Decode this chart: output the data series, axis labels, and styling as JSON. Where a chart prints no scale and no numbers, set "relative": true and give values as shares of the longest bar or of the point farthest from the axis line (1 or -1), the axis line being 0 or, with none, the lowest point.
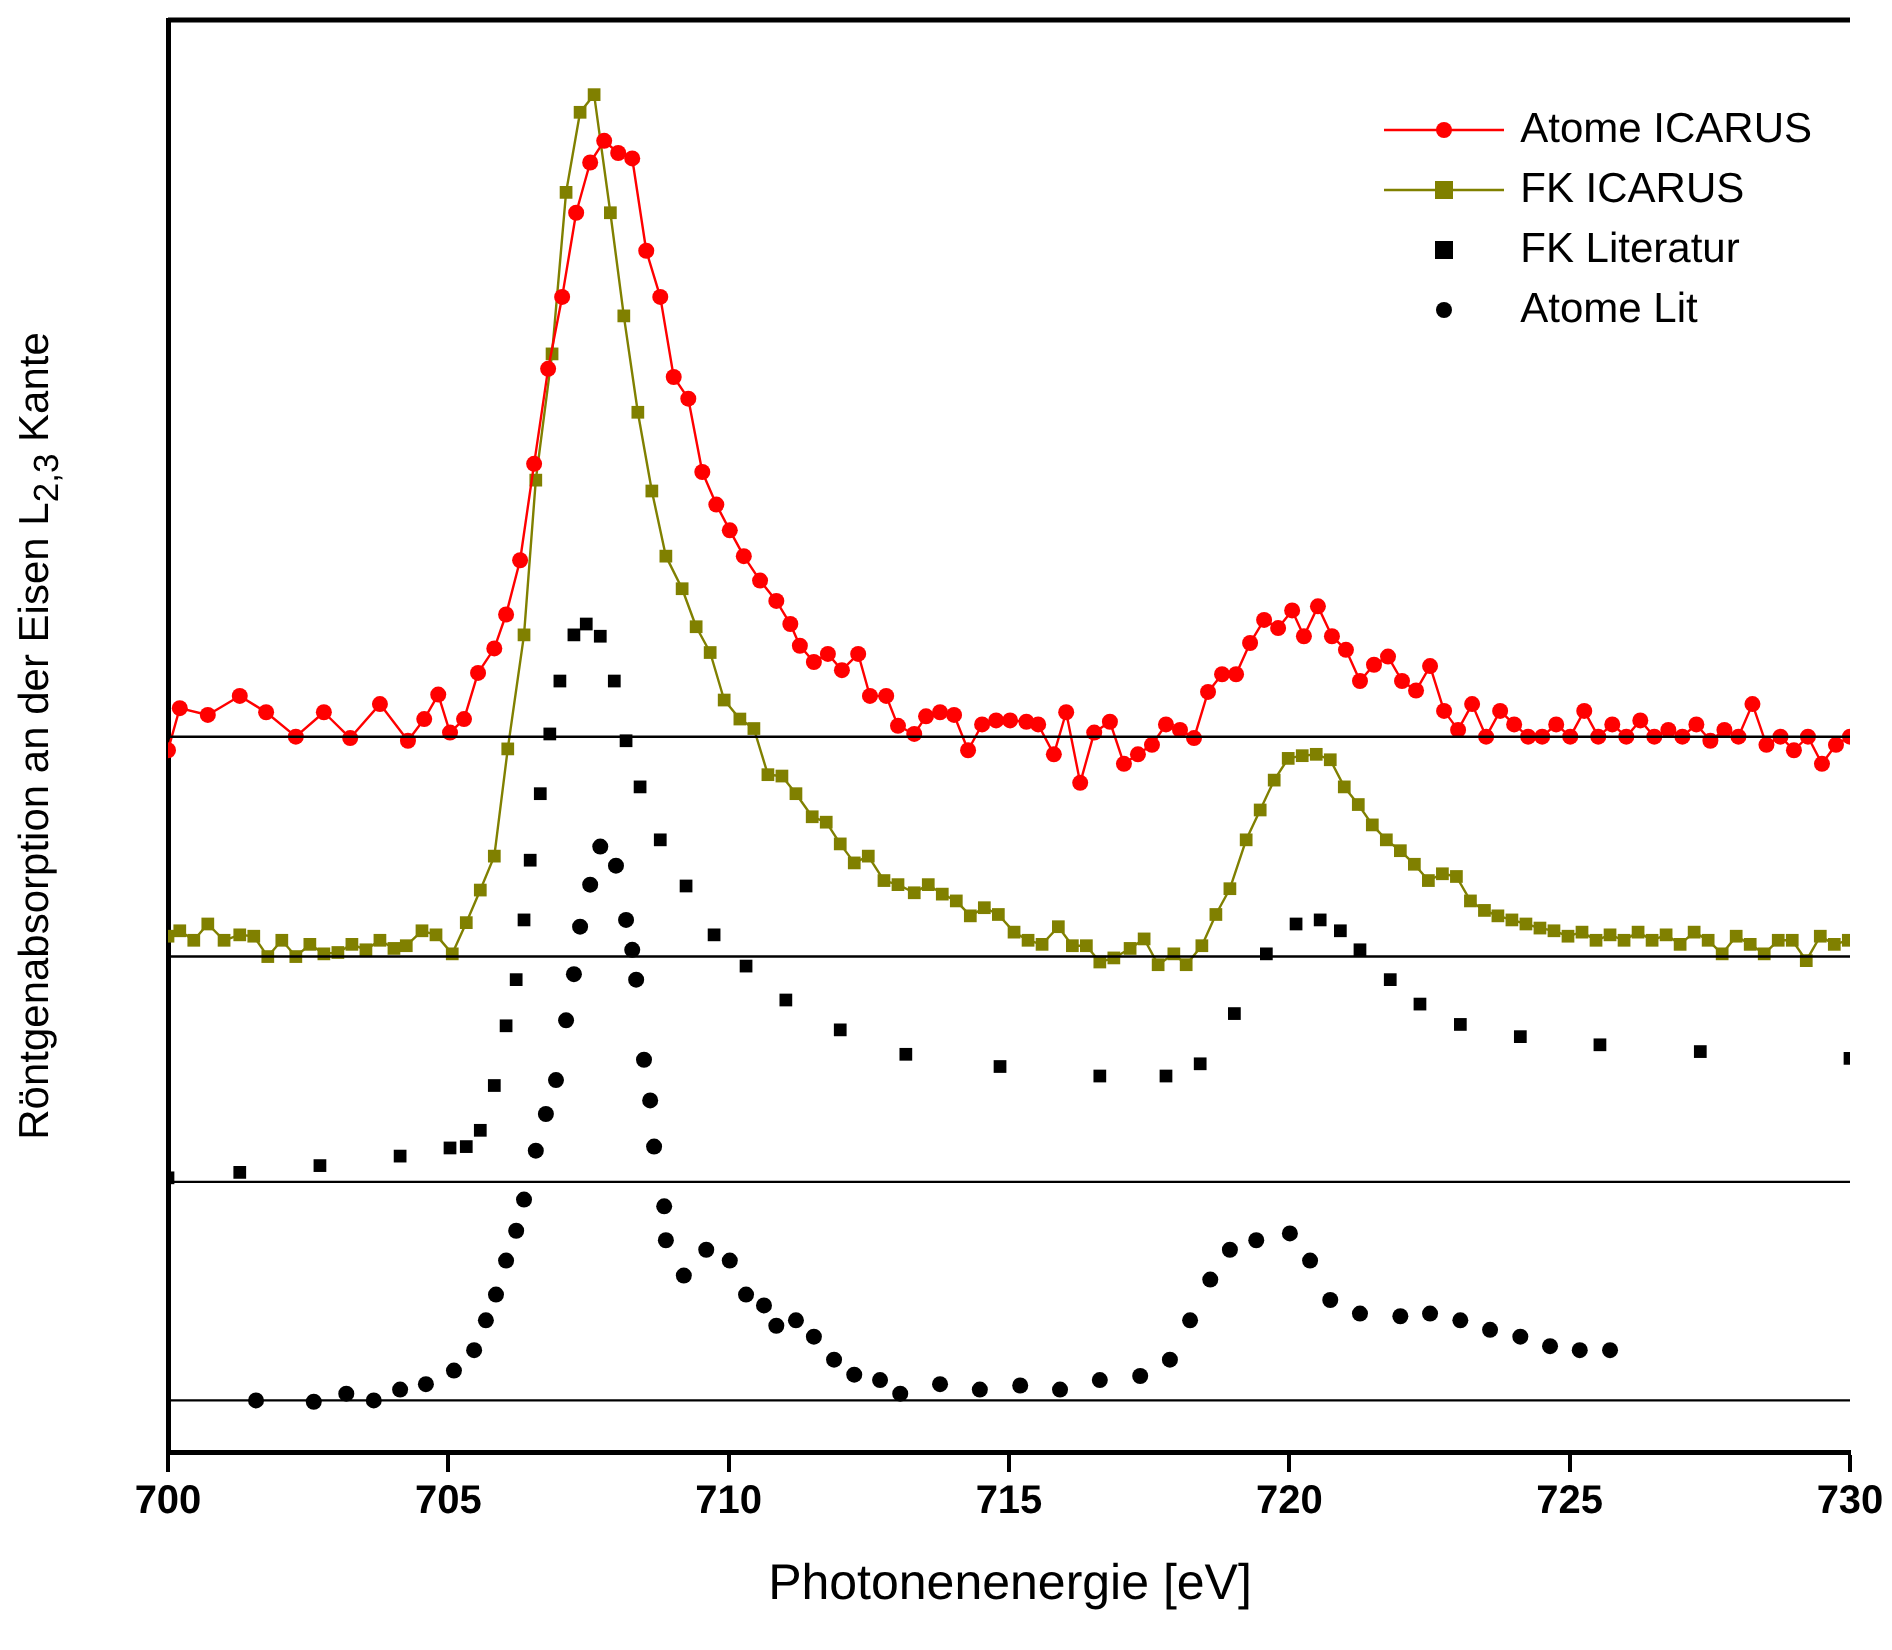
{
  "chart_data": {
    "type": "line",
    "xlabel": "Photonenenergie [eV]",
    "ylabel": "Röntgenabsorption an der Eisen L$_{2,3}$ Kante",
    "relative": true,
    "xlim": [
      700,
      730
    ],
    "xticks": [
      700,
      705,
      710,
      715,
      720,
      725,
      730
    ],
    "grid": false,
    "legend": "top right",
    "ref_lines": [
      {
        "axis": "y",
        "value": 0.527,
        "color": "#000000"
      },
      {
        "axis": "y",
        "value": 0.365,
        "color": "#000000"
      },
      {
        "axis": "y",
        "value": 0.199,
        "color": "#000000"
      },
      {
        "axis": "y",
        "value": 0.038,
        "color": "#000000"
      }
    ],
    "series": [
      {
        "name": "Atome ICARUS",
        "marker": "circle",
        "color": "#ff0000",
        "x": [
          700.0,
          700.21,
          700.71,
          701.28,
          701.75,
          702.28,
          702.78,
          703.25,
          703.78,
          704.28,
          704.57,
          704.82,
          705.03,
          705.28,
          705.53,
          705.82,
          706.03,
          706.28,
          706.53,
          706.78,
          707.03,
          707.28,
          707.53,
          707.78,
          708.03,
          708.28,
          708.53,
          708.78,
          709.02,
          709.28,
          709.53,
          709.78,
          710.02,
          710.27,
          710.56,
          710.85,
          711.1,
          711.27,
          711.52,
          711.77,
          712.02,
          712.31,
          712.52,
          712.81,
          713.02,
          713.31,
          713.52,
          713.77,
          714.02,
          714.27,
          714.52,
          714.77,
          715.02,
          715.31,
          715.52,
          715.8,
          716.02,
          716.27,
          716.52,
          716.8,
          717.05,
          717.3,
          717.55,
          717.8,
          718.05,
          718.3,
          718.55,
          718.8,
          719.05,
          719.3,
          719.55,
          719.8,
          720.05,
          720.26,
          720.51,
          720.76,
          721.01,
          721.26,
          721.51,
          721.76,
          722.01,
          722.26,
          722.51,
          722.76,
          723.01,
          723.26,
          723.51,
          723.76,
          724.01,
          724.26,
          724.51,
          724.76,
          725.01,
          725.26,
          725.51,
          725.76,
          726.01,
          726.26,
          726.51,
          726.76,
          727.01,
          727.26,
          727.51,
          727.76,
          728.01,
          728.26,
          728.51,
          728.76,
          729.0,
          729.25,
          729.5,
          729.75,
          730.0
        ],
        "values": [
          0.517,
          0.548,
          0.543,
          0.557,
          0.545,
          0.527,
          0.545,
          0.526,
          0.551,
          0.524,
          0.54,
          0.558,
          0.53,
          0.54,
          0.574,
          0.592,
          0.617,
          0.657,
          0.728,
          0.798,
          0.851,
          0.913,
          0.95,
          0.966,
          0.957,
          0.953,
          0.885,
          0.851,
          0.792,
          0.776,
          0.722,
          0.698,
          0.679,
          0.66,
          0.642,
          0.627,
          0.61,
          0.594,
          0.582,
          0.588,
          0.576,
          0.588,
          0.557,
          0.557,
          0.535,
          0.529,
          0.542,
          0.545,
          0.543,
          0.517,
          0.536,
          0.539,
          0.539,
          0.538,
          0.536,
          0.514,
          0.545,
          0.493,
          0.53,
          0.538,
          0.507,
          0.514,
          0.521,
          0.536,
          0.532,
          0.526,
          0.56,
          0.573,
          0.573,
          0.596,
          0.613,
          0.607,
          0.62,
          0.601,
          0.623,
          0.601,
          0.591,
          0.568,
          0.58,
          0.586,
          0.568,
          0.561,
          0.579,
          0.546,
          0.532,
          0.551,
          0.527,
          0.546,
          0.536,
          0.527,
          0.527,
          0.536,
          0.527,
          0.546,
          0.527,
          0.536,
          0.527,
          0.539,
          0.527,
          0.532,
          0.527,
          0.536,
          0.524,
          0.532,
          0.527,
          0.551,
          0.521,
          0.527,
          0.517,
          0.527,
          0.507,
          0.521,
          0.527
        ]
      },
      {
        "name": "FK ICARUS",
        "marker": "square",
        "color": "#808000",
        "x": [
          700.0,
          700.21,
          700.46,
          700.71,
          701.0,
          701.28,
          701.53,
          701.78,
          702.03,
          702.28,
          702.53,
          702.78,
          703.03,
          703.28,
          703.53,
          703.78,
          704.03,
          704.25,
          704.53,
          704.78,
          705.07,
          705.32,
          705.57,
          705.82,
          706.06,
          706.35,
          706.56,
          706.85,
          707.1,
          707.35,
          707.6,
          707.89,
          708.13,
          708.38,
          708.63,
          708.88,
          709.17,
          709.42,
          709.67,
          709.92,
          710.2,
          710.45,
          710.7,
          710.95,
          711.2,
          711.49,
          711.74,
          711.99,
          712.24,
          712.49,
          712.77,
          713.02,
          713.31,
          713.56,
          713.81,
          714.06,
          714.31,
          714.56,
          714.81,
          715.09,
          715.34,
          715.59,
          715.88,
          716.13,
          716.38,
          716.62,
          716.87,
          717.16,
          717.41,
          717.66,
          717.94,
          718.16,
          718.44,
          718.69,
          718.94,
          719.23,
          719.48,
          719.73,
          719.98,
          720.23,
          720.48,
          720.73,
          720.98,
          721.23,
          721.48,
          721.73,
          721.98,
          722.23,
          722.48,
          722.73,
          722.98,
          723.23,
          723.48,
          723.72,
          723.97,
          724.22,
          724.47,
          724.72,
          724.97,
          725.22,
          725.47,
          725.72,
          725.97,
          726.22,
          726.47,
          726.72,
          726.97,
          727.22,
          727.47,
          727.72,
          727.97,
          728.22,
          728.47,
          728.72,
          728.97,
          729.22,
          729.47,
          729.72,
          729.97
        ],
        "values": [
          0.38,
          0.384,
          0.377,
          0.389,
          0.377,
          0.381,
          0.38,
          0.365,
          0.377,
          0.365,
          0.374,
          0.367,
          0.368,
          0.374,
          0.37,
          0.377,
          0.371,
          0.373,
          0.384,
          0.381,
          0.367,
          0.39,
          0.414,
          0.439,
          0.518,
          0.602,
          0.716,
          0.809,
          0.928,
          0.987,
          1.0,
          0.913,
          0.837,
          0.766,
          0.708,
          0.66,
          0.636,
          0.608,
          0.589,
          0.554,
          0.54,
          0.533,
          0.499,
          0.498,
          0.485,
          0.468,
          0.464,
          0.448,
          0.434,
          0.439,
          0.421,
          0.418,
          0.412,
          0.418,
          0.411,
          0.406,
          0.395,
          0.401,
          0.396,
          0.383,
          0.377,
          0.374,
          0.387,
          0.373,
          0.373,
          0.361,
          0.364,
          0.371,
          0.378,
          0.359,
          0.367,
          0.359,
          0.373,
          0.396,
          0.415,
          0.451,
          0.473,
          0.495,
          0.511,
          0.513,
          0.514,
          0.51,
          0.49,
          0.477,
          0.462,
          0.451,
          0.443,
          0.433,
          0.421,
          0.426,
          0.424,
          0.406,
          0.399,
          0.395,
          0.392,
          0.389,
          0.386,
          0.384,
          0.38,
          0.383,
          0.377,
          0.381,
          0.377,
          0.383,
          0.377,
          0.381,
          0.374,
          0.383,
          0.377,
          0.367,
          0.38,
          0.374,
          0.367,
          0.377,
          0.377,
          0.362,
          0.38,
          0.374,
          0.377
        ]
      },
      {
        "name": "FK Literatur",
        "type": "scatter",
        "marker": "square",
        "color": "#000000",
        "x": [
          700.0,
          701.28,
          702.71,
          704.14,
          705.03,
          705.32,
          705.57,
          705.82,
          706.03,
          706.21,
          706.35,
          706.46,
          706.64,
          706.81,
          706.99,
          707.24,
          707.46,
          707.71,
          707.96,
          708.17,
          708.42,
          708.78,
          709.24,
          709.74,
          710.31,
          711.02,
          711.99,
          713.16,
          714.84,
          716.62,
          717.8,
          718.41,
          719.02,
          719.59,
          720.12,
          720.55,
          720.91,
          721.26,
          721.8,
          722.33,
          723.05,
          724.12,
          725.54,
          727.33,
          730.0
        ],
        "values": [
          0.202,
          0.206,
          0.211,
          0.218,
          0.224,
          0.225,
          0.237,
          0.27,
          0.314,
          0.348,
          0.392,
          0.436,
          0.485,
          0.529,
          0.568,
          0.602,
          0.61,
          0.601,
          0.568,
          0.524,
          0.49,
          0.451,
          0.417,
          0.381,
          0.358,
          0.333,
          0.311,
          0.293,
          0.284,
          0.277,
          0.277,
          0.286,
          0.323,
          0.367,
          0.389,
          0.392,
          0.384,
          0.37,
          0.348,
          0.33,
          0.315,
          0.306,
          0.3,
          0.295,
          0.29
        ]
      },
      {
        "name": "Atome Lit",
        "type": "scatter",
        "marker": "circle",
        "color": "#000000",
        "x": [
          701.57,
          702.6,
          703.18,
          703.67,
          704.14,
          704.6,
          705.1,
          705.46,
          705.67,
          705.85,
          706.03,
          706.21,
          706.35,
          706.56,
          706.74,
          706.92,
          707.1,
          707.24,
          707.35,
          707.53,
          707.71,
          707.99,
          708.17,
          708.28,
          708.35,
          708.49,
          708.6,
          708.67,
          708.85,
          708.88,
          709.2,
          709.6,
          710.02,
          710.31,
          710.63,
          710.85,
          711.2,
          711.52,
          711.88,
          712.24,
          712.7,
          713.06,
          713.77,
          714.48,
          715.2,
          715.91,
          716.62,
          717.34,
          717.87,
          718.23,
          718.59,
          718.94,
          719.41,
          720.01,
          720.37,
          720.73,
          721.26,
          721.98,
          722.51,
          723.05,
          723.58,
          724.12,
          724.65,
          725.18,
          725.72
        ],
        "values": [
          0.038,
          0.037,
          0.043,
          0.038,
          0.046,
          0.05,
          0.06,
          0.075,
          0.097,
          0.116,
          0.141,
          0.163,
          0.186,
          0.222,
          0.249,
          0.274,
          0.318,
          0.352,
          0.387,
          0.418,
          0.446,
          0.432,
          0.392,
          0.37,
          0.348,
          0.289,
          0.259,
          0.225,
          0.181,
          0.156,
          0.13,
          0.149,
          0.141,
          0.116,
          0.108,
          0.093,
          0.097,
          0.085,
          0.068,
          0.057,
          0.053,
          0.043,
          0.05,
          0.046,
          0.049,
          0.046,
          0.053,
          0.056,
          0.068,
          0.097,
          0.127,
          0.149,
          0.156,
          0.161,
          0.141,
          0.112,
          0.102,
          0.1,
          0.102,
          0.097,
          0.09,
          0.085,
          0.078,
          0.075,
          0.075
        ]
      }
    ]
  }
}
